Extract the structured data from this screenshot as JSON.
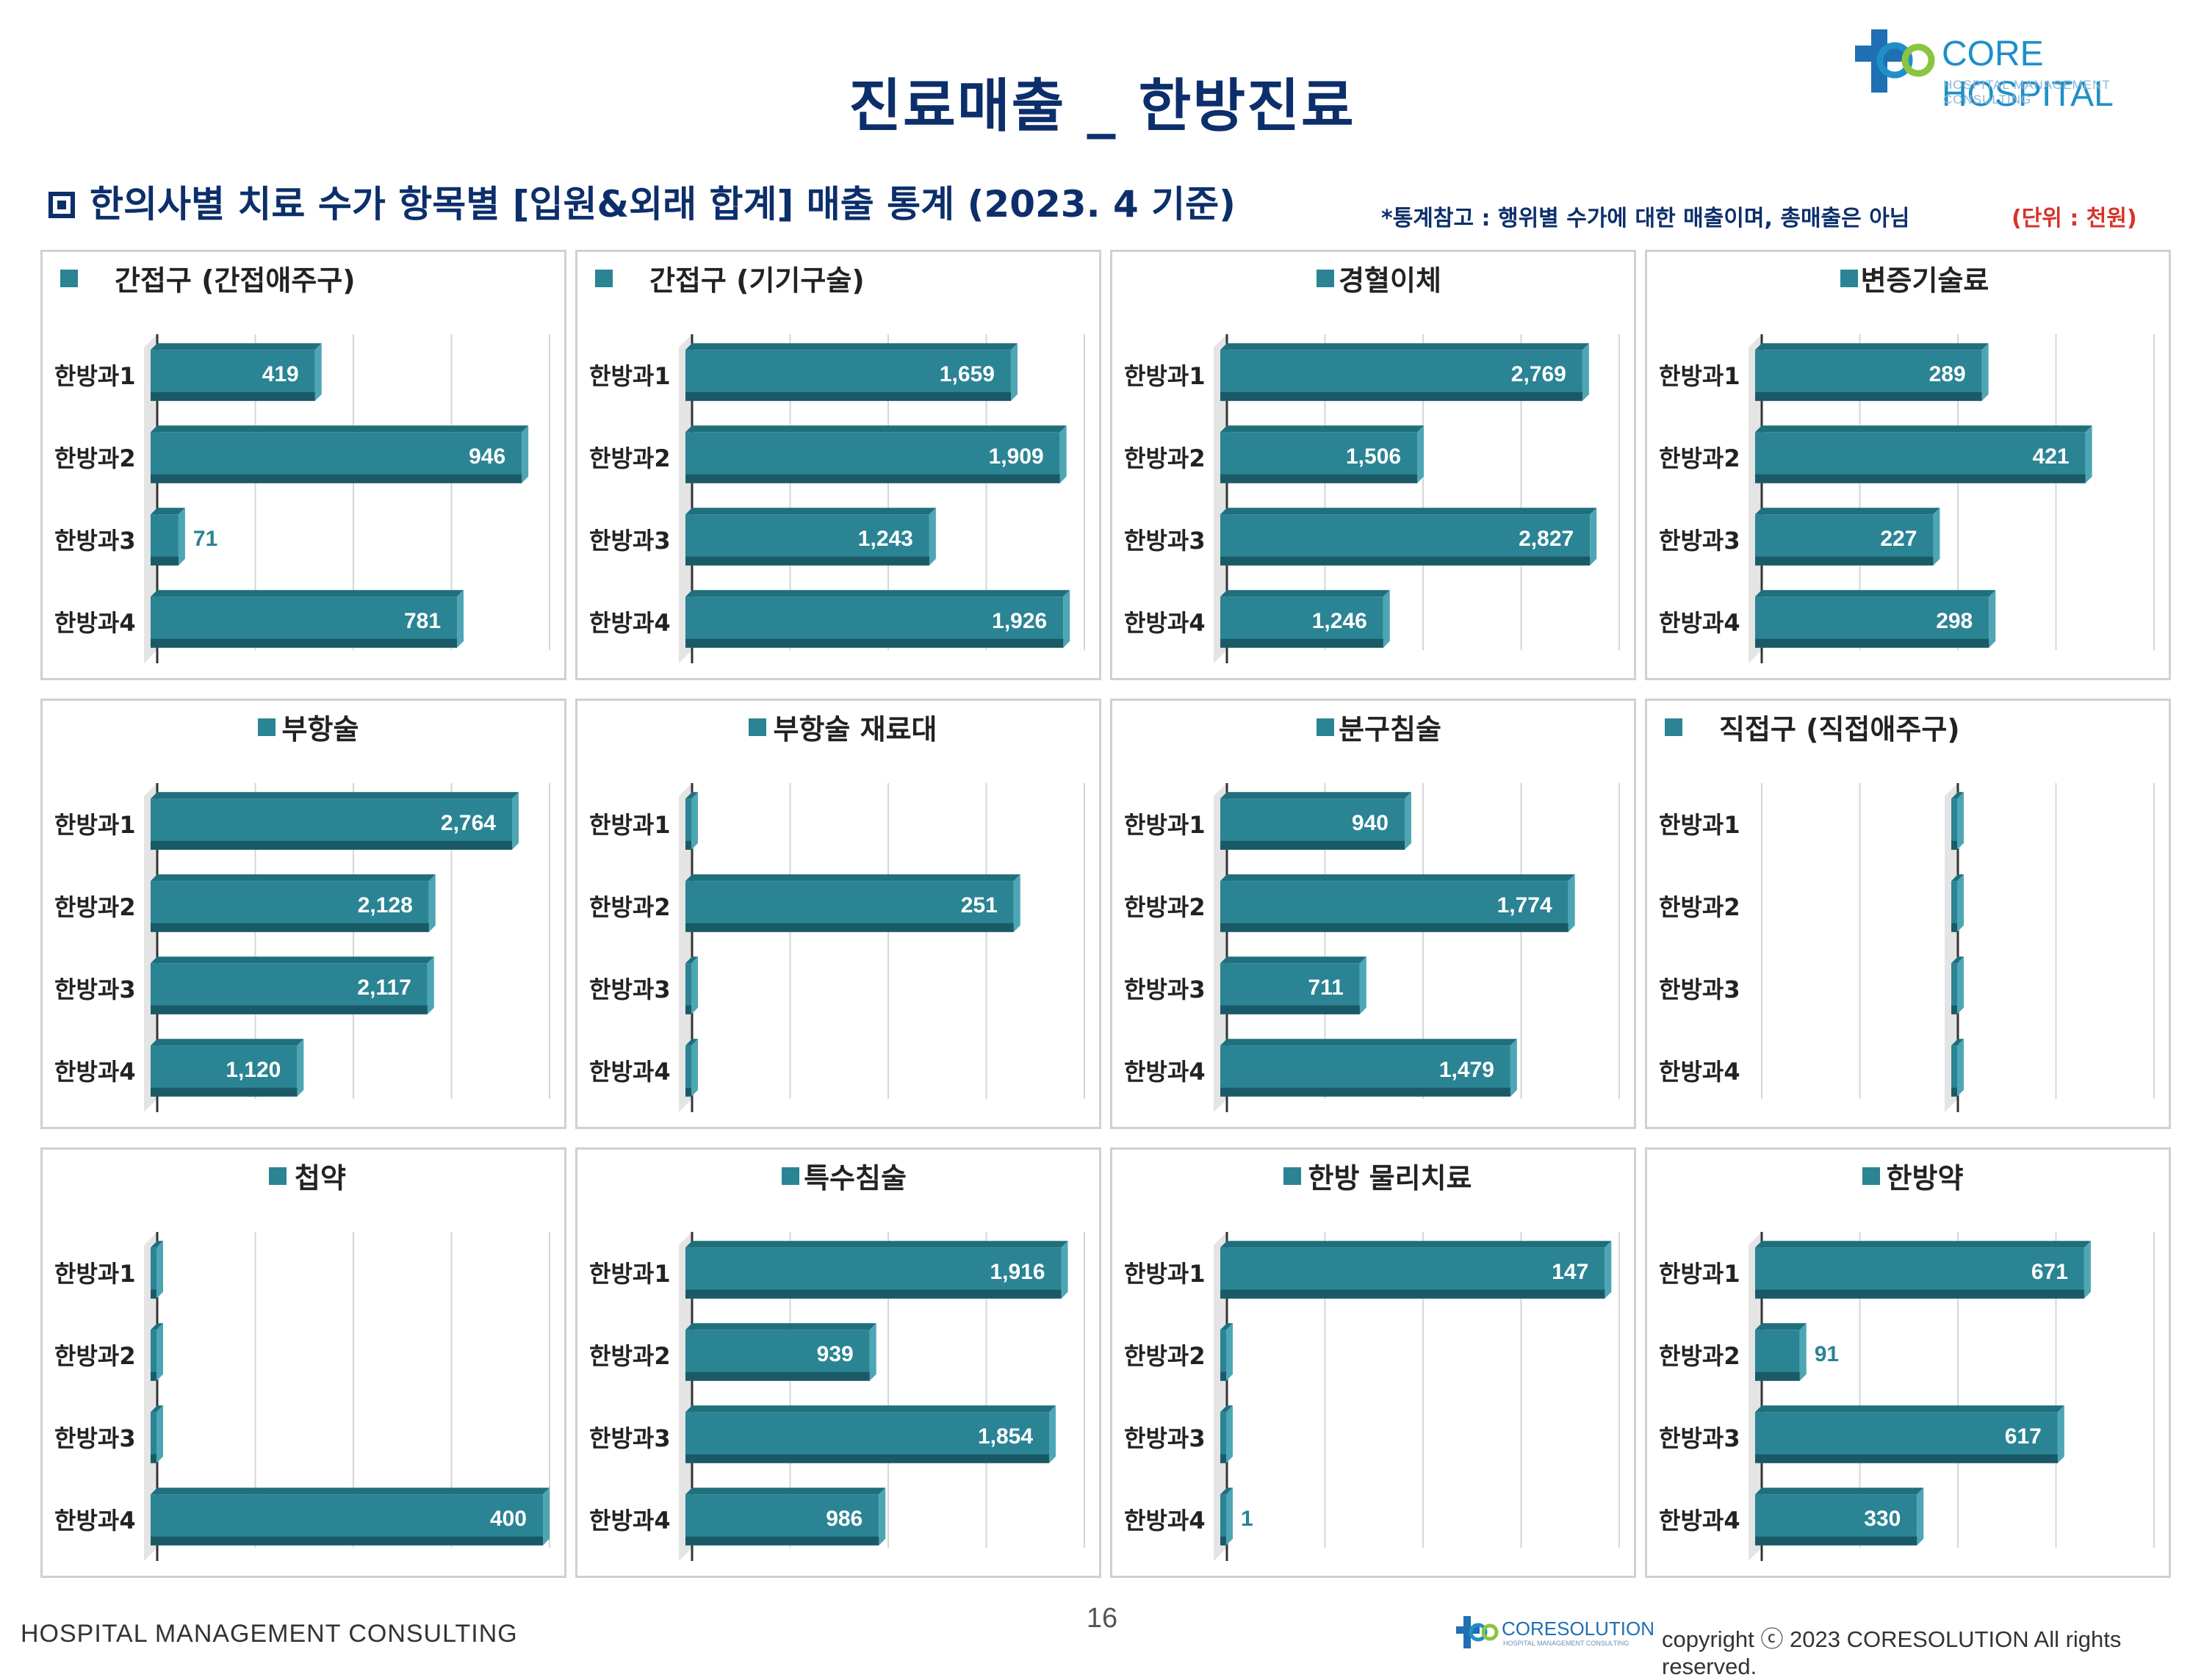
{
  "header": {
    "title": "진료매출 _ 한방진료",
    "subtitle": "한의사별 치료 수가 항목별 [입원&외래 합계] 매출 통계 (2023. 4 기준)",
    "note": "*통계참고 : 행위별 수가에 대한 매출이며, 총매출은 아님",
    "unit": "(단위 : 천원)"
  },
  "logo": {
    "name": "CORE HOSPITAL",
    "tagline": "HOSPITAL MANAGEMENT CONSULTING"
  },
  "footer": {
    "left": "HOSPITAL MANAGEMENT CONSULTING",
    "page_number": "16",
    "logo_name": "CORESOLUTION",
    "logo_tagline": "HOSPITAL MANAGEMENT CONSULTING",
    "copyright": "copyright ⓒ 2023 CORESOLUTION All rights reserved."
  },
  "colors": {
    "bar": "#2a8494",
    "bar_top": "#1f6f7d",
    "bar_side": "#4ea6b4",
    "bar_bottom": "#1a5a66",
    "title": "#0c2f6b",
    "unit": "#d8332a"
  },
  "chart_data": [
    {
      "type": "bar",
      "orientation": "horizontal",
      "title": "간접구 (간접애주구)",
      "title_align": "left",
      "categories": [
        "한방과1",
        "한방과2",
        "한방과3",
        "한방과4"
      ],
      "values": [
        419,
        946,
        71,
        781
      ],
      "xlim": [
        0,
        1000
      ]
    },
    {
      "type": "bar",
      "orientation": "horizontal",
      "title": "간접구 (기기구술)",
      "title_align": "left",
      "categories": [
        "한방과1",
        "한방과2",
        "한방과3",
        "한방과4"
      ],
      "values": [
        1659,
        1909,
        1243,
        1926
      ],
      "xlim": [
        0,
        2000
      ]
    },
    {
      "type": "bar",
      "orientation": "horizontal",
      "title": "경혈이체",
      "title_align": "center",
      "categories": [
        "한방과1",
        "한방과2",
        "한방과3",
        "한방과4"
      ],
      "values": [
        2769,
        1506,
        2827,
        1246
      ],
      "xlim": [
        0,
        3000
      ]
    },
    {
      "type": "bar",
      "orientation": "horizontal",
      "title": "변증기술료",
      "title_align": "center",
      "categories": [
        "한방과1",
        "한방과2",
        "한방과3",
        "한방과4"
      ],
      "values": [
        289,
        421,
        227,
        298
      ],
      "xlim": [
        0,
        500
      ]
    },
    {
      "type": "bar",
      "orientation": "horizontal",
      "title": "부항술",
      "title_align": "center",
      "categories": [
        "한방과1",
        "한방과2",
        "한방과3",
        "한방과4"
      ],
      "values": [
        2764,
        2128,
        2117,
        1120
      ],
      "xlim": [
        0,
        3000
      ]
    },
    {
      "type": "bar",
      "orientation": "horizontal",
      "title": "부항술 재료대",
      "title_align": "center",
      "categories": [
        "한방과1",
        "한방과2",
        "한방과3",
        "한방과4"
      ],
      "values": [
        null,
        251,
        null,
        null
      ],
      "xlim": [
        0,
        300
      ]
    },
    {
      "type": "bar",
      "orientation": "horizontal",
      "title": "분구침술",
      "title_align": "center",
      "categories": [
        "한방과1",
        "한방과2",
        "한방과3",
        "한방과4"
      ],
      "values": [
        940,
        1774,
        711,
        1479
      ],
      "xlim": [
        0,
        2000
      ]
    },
    {
      "type": "bar",
      "orientation": "horizontal",
      "title": "직접구 (직접애주구)",
      "title_align": "left",
      "categories": [
        "한방과1",
        "한방과2",
        "한방과3",
        "한방과4"
      ],
      "values": [
        null,
        null,
        null,
        null
      ],
      "xlim": [
        -1,
        1
      ]
    },
    {
      "type": "bar",
      "orientation": "horizontal",
      "title": "첩약",
      "title_align": "center",
      "categories": [
        "한방과1",
        "한방과2",
        "한방과3",
        "한방과4"
      ],
      "values": [
        null,
        null,
        null,
        400
      ],
      "xlim": [
        0,
        400
      ]
    },
    {
      "type": "bar",
      "orientation": "horizontal",
      "title": "특수침술",
      "title_align": "center",
      "categories": [
        "한방과1",
        "한방과2",
        "한방과3",
        "한방과4"
      ],
      "values": [
        1916,
        939,
        1854,
        986
      ],
      "xlim": [
        0,
        2000
      ]
    },
    {
      "type": "bar",
      "orientation": "horizontal",
      "title": "한방 물리치료",
      "title_align": "center",
      "categories": [
        "한방과1",
        "한방과2",
        "한방과3",
        "한방과4"
      ],
      "values": [
        147,
        null,
        null,
        1
      ],
      "xlim": [
        0,
        150
      ]
    },
    {
      "type": "bar",
      "orientation": "horizontal",
      "title": "한방약",
      "title_align": "center",
      "categories": [
        "한방과1",
        "한방과2",
        "한방과3",
        "한방과4"
      ],
      "values": [
        671,
        91,
        617,
        330
      ],
      "xlim": [
        0,
        800
      ]
    }
  ]
}
